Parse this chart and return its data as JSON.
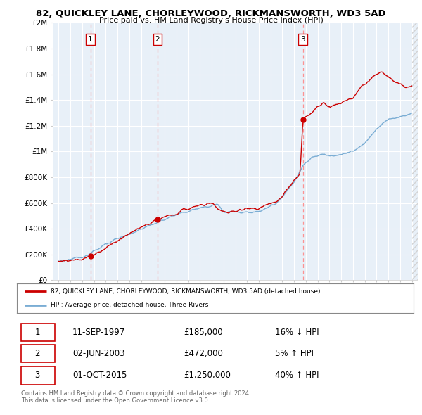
{
  "title": "82, QUICKLEY LANE, CHORLEYWOOD, RICKMANSWORTH, WD3 5AD",
  "subtitle": "Price paid vs. HM Land Registry's House Price Index (HPI)",
  "sale_year_floats": [
    1997.7,
    2003.4,
    2015.75
  ],
  "sale_prices": [
    185000,
    472000,
    1250000
  ],
  "sale_labels": [
    "1",
    "2",
    "3"
  ],
  "legend_line1": "82, QUICKLEY LANE, CHORLEYWOOD, RICKMANSWORTH, WD3 5AD (detached house)",
  "legend_line2": "HPI: Average price, detached house, Three Rivers",
  "table_rows": [
    [
      "1",
      "11-SEP-1997",
      "£185,000",
      "16% ↓ HPI"
    ],
    [
      "2",
      "02-JUN-2003",
      "£472,000",
      "5% ↑ HPI"
    ],
    [
      "3",
      "01-OCT-2015",
      "£1,250,000",
      "40% ↑ HPI"
    ]
  ],
  "footer": "Contains HM Land Registry data © Crown copyright and database right 2024.\nThis data is licensed under the Open Government Licence v3.0.",
  "price_line_color": "#cc0000",
  "hpi_line_color": "#7aadd4",
  "dashed_line_color": "#ff8888",
  "dot_color": "#cc0000",
  "bg_color": "#ddeeff",
  "chart_bg": "#e8f0f8",
  "ylim": [
    0,
    2000000
  ],
  "yticks": [
    0,
    200000,
    400000,
    600000,
    800000,
    1000000,
    1200000,
    1400000,
    1600000,
    1800000,
    2000000
  ],
  "ytick_labels": [
    "£0",
    "£200K",
    "£400K",
    "£600K",
    "£800K",
    "£1M",
    "£1.2M",
    "£1.4M",
    "£1.6M",
    "£1.8M",
    "£2M"
  ],
  "xlim_start": 1994.5,
  "xlim_end": 2025.5,
  "xticks": [
    1995,
    1996,
    1997,
    1998,
    1999,
    2000,
    2001,
    2002,
    2003,
    2004,
    2005,
    2006,
    2007,
    2008,
    2009,
    2010,
    2011,
    2012,
    2013,
    2014,
    2015,
    2016,
    2017,
    2018,
    2019,
    2020,
    2021,
    2022,
    2023,
    2024,
    2025
  ]
}
